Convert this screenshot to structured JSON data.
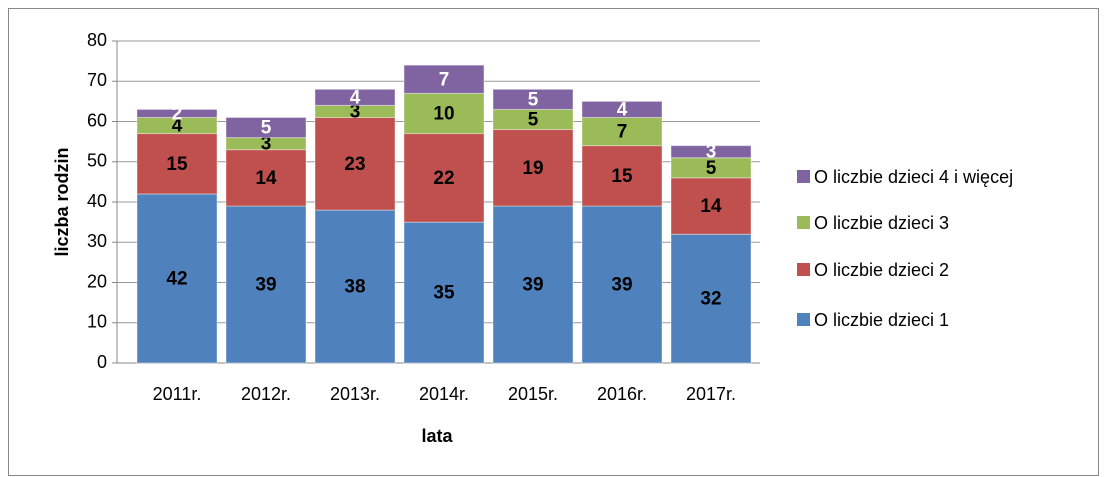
{
  "chart_data": {
    "type": "stacked_bar",
    "categories": [
      "2011r.",
      "2012r.",
      "2013r.",
      "2014r.",
      "2015r.",
      "2016r.",
      "2017r."
    ],
    "series": [
      {
        "name": "O liczbie dzieci 1",
        "color": "#4f81bd",
        "values": [
          42,
          39,
          38,
          35,
          39,
          39,
          32
        ]
      },
      {
        "name": "O liczbie dzieci 2",
        "color": "#c0504d",
        "values": [
          15,
          14,
          23,
          22,
          19,
          15,
          14
        ]
      },
      {
        "name": "O liczbie dzieci 3",
        "color": "#9bbb59",
        "values": [
          4,
          3,
          3,
          10,
          5,
          7,
          5
        ]
      },
      {
        "name": "O liczbie dzieci 4 i więcej",
        "color": "#8064a2",
        "values": [
          2,
          5,
          4,
          7,
          5,
          4,
          3
        ]
      }
    ],
    "x_label": "lata",
    "y_label": "liczba rodzin",
    "ylim": [
      0,
      80
    ],
    "yticks": [
      0,
      10,
      20,
      30,
      40,
      50,
      60,
      70,
      80
    ],
    "grid": true,
    "legend": "right"
  }
}
